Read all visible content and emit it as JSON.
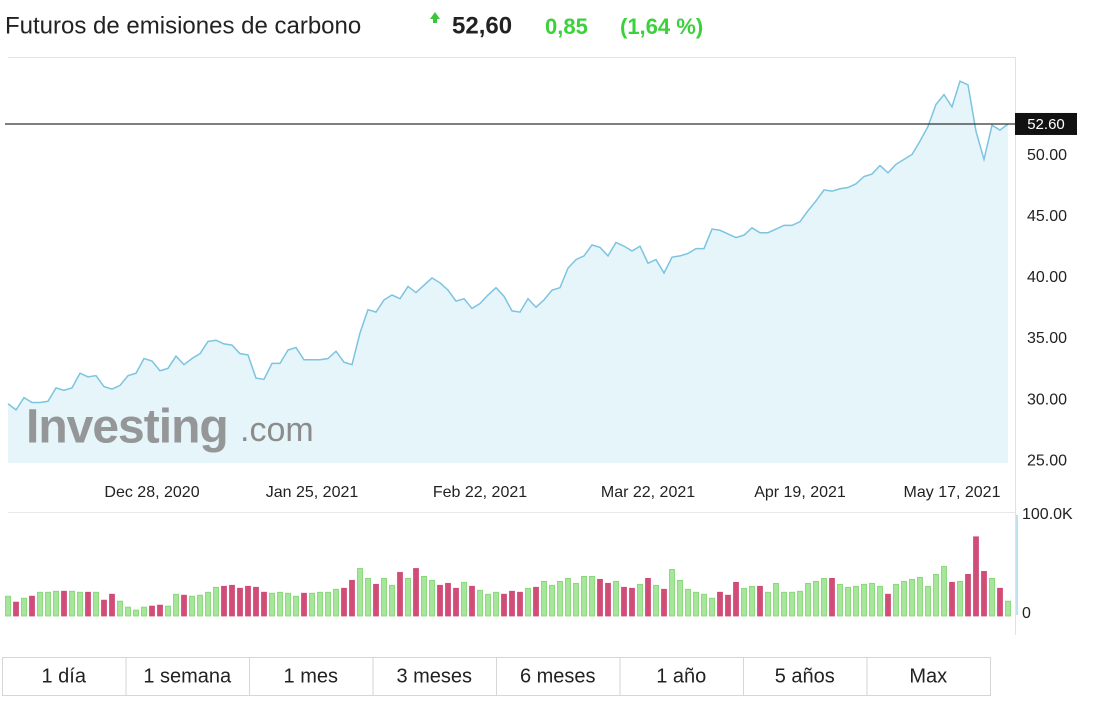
{
  "quote": {
    "last": "52,60",
    "change": "0,85",
    "change_pct": "(1,64 %)"
  },
  "buttons": [
    "1 día",
    "1 semana",
    "1 mes",
    "3 meses",
    "6 meses",
    "1 año",
    "5 años",
    "Max"
  ],
  "chart_data": [
    {
      "type": "line",
      "title": "Futuros de emisiones de carbono",
      "watermark": {
        "brand": "Investing",
        "suffix": ".com"
      },
      "categories": [
        null,
        null,
        null,
        null,
        null,
        null,
        null,
        null,
        null,
        null,
        null,
        null,
        null,
        null,
        null,
        null,
        null,
        null,
        "Dec 28, 2020",
        null,
        null,
        null,
        null,
        null,
        null,
        null,
        null,
        null,
        null,
        null,
        null,
        null,
        null,
        null,
        null,
        null,
        null,
        null,
        "Jan 25, 2021",
        null,
        null,
        null,
        null,
        null,
        null,
        null,
        null,
        null,
        null,
        null,
        null,
        null,
        null,
        null,
        null,
        null,
        null,
        null,
        null,
        "Feb 22, 2021",
        null,
        null,
        null,
        null,
        null,
        null,
        null,
        null,
        null,
        null,
        null,
        null,
        null,
        null,
        null,
        null,
        null,
        null,
        null,
        null,
        "Mar 22, 2021",
        null,
        null,
        null,
        null,
        null,
        null,
        null,
        null,
        null,
        null,
        null,
        null,
        null,
        null,
        null,
        null,
        null,
        null,
        "Apr 19, 2021",
        null,
        null,
        null,
        null,
        null,
        null,
        null,
        null,
        null,
        null,
        null,
        null,
        null,
        null,
        null,
        null,
        null,
        null,
        "May 17, 2021",
        null,
        null,
        null,
        null,
        null,
        null,
        null
      ],
      "series": [
        {
          "name": "Precio",
          "color": "#7cc4e0",
          "fill": "#e5f5f9",
          "values": [
            29.7,
            29.2,
            30.2,
            29.8,
            29.8,
            29.9,
            31.0,
            30.8,
            31.0,
            32.2,
            31.9,
            32.0,
            31.1,
            30.9,
            31.2,
            32.0,
            32.2,
            33.4,
            33.2,
            32.4,
            32.6,
            33.6,
            32.9,
            33.4,
            33.8,
            34.8,
            34.9,
            34.6,
            34.5,
            33.8,
            33.7,
            31.8,
            31.7,
            33.0,
            33.0,
            34.1,
            34.3,
            33.3,
            33.3,
            33.3,
            33.4,
            34.0,
            33.1,
            32.9,
            35.5,
            37.4,
            37.2,
            38.2,
            38.6,
            38.3,
            39.3,
            38.8,
            39.4,
            40.0,
            39.6,
            39.0,
            38.1,
            38.3,
            37.5,
            37.9,
            38.6,
            39.2,
            38.5,
            37.3,
            37.2,
            38.3,
            37.6,
            38.2,
            39.0,
            39.2,
            40.8,
            41.5,
            41.8,
            42.7,
            42.5,
            41.8,
            42.9,
            42.6,
            42.2,
            42.6,
            41.2,
            41.5,
            40.4,
            41.7,
            41.8,
            42.0,
            42.4,
            42.4,
            44.0,
            43.9,
            43.6,
            43.3,
            43.5,
            44.1,
            43.7,
            43.7,
            44.0,
            44.3,
            44.3,
            44.6,
            45.5,
            46.3,
            47.2,
            47.1,
            47.3,
            47.4,
            47.7,
            48.3,
            48.5,
            49.2,
            48.6,
            49.3,
            49.7,
            50.1,
            51.2,
            52.4,
            54.2,
            55.0,
            54.0,
            56.1,
            55.8,
            52.0,
            49.7,
            52.5,
            52.1,
            52.6
          ]
        }
      ],
      "price_marker": {
        "value": 52.6,
        "label": "52.60"
      },
      "ylim": [
        24.85,
        58
      ],
      "yticks": [
        {
          "value": 25,
          "label": "25.00"
        },
        {
          "value": 30,
          "label": "30.00"
        },
        {
          "value": 35,
          "label": "35.00"
        },
        {
          "value": 40,
          "label": "40.00"
        },
        {
          "value": 45,
          "label": "45.00"
        },
        {
          "value": 50,
          "label": "50.00"
        }
      ]
    },
    {
      "type": "bar",
      "up_color": "#a6e69a",
      "down_color": "#d04d77",
      "values": [
        20000,
        14000,
        18000,
        20000,
        24000,
        24000,
        25000,
        25000,
        25000,
        24000,
        24000,
        24000,
        16000,
        22000,
        15000,
        9000,
        6000,
        9000,
        10000,
        11000,
        10000,
        22000,
        21000,
        20000,
        21000,
        24000,
        29000,
        30000,
        31000,
        28000,
        30000,
        29000,
        24000,
        23000,
        24000,
        23000,
        20000,
        23000,
        23000,
        24000,
        24000,
        27000,
        28000,
        36000,
        48000,
        38000,
        32000,
        38000,
        31000,
        44000,
        38000,
        48000,
        40000,
        36000,
        31000,
        33000,
        28000,
        34000,
        30000,
        26000,
        22000,
        24000,
        22000,
        25000,
        24000,
        28000,
        29000,
        35000,
        31000,
        35000,
        38000,
        33000,
        40000,
        40000,
        37000,
        33000,
        35000,
        29000,
        28000,
        32000,
        38000,
        31000,
        27000,
        47000,
        36000,
        27000,
        24000,
        22000,
        18000,
        24000,
        21000,
        34000,
        28000,
        30000,
        30000,
        24000,
        33000,
        24000,
        24000,
        25000,
        33000,
        35000,
        38000,
        38000,
        32000,
        29000,
        30000,
        32000,
        33000,
        30000,
        22000,
        32000,
        35000,
        37000,
        39000,
        30000,
        42000,
        50000,
        34000,
        35000,
        42000,
        80000,
        45000,
        38000,
        28000,
        15000
      ],
      "ylim": [
        0,
        100000
      ],
      "yticks": [
        {
          "value": 100000,
          "label": "100.0K"
        },
        0
      ]
    }
  ]
}
